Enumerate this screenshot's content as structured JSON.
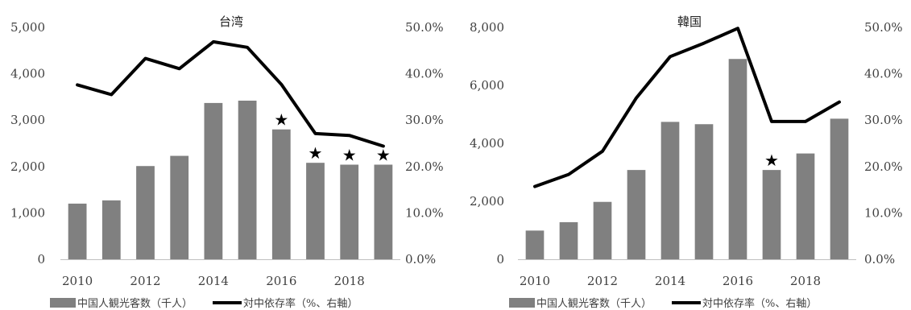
{
  "colors": {
    "bar": "#808080",
    "line": "#000000",
    "text": "#404040",
    "axis": "#bfbfbf",
    "star": "#000000"
  },
  "legend": {
    "bar_label": "中国人観光客数（千人）",
    "line_label": "対中依存率（%、右軸）"
  },
  "chart_data": [
    {
      "type": "bar",
      "title": "台湾",
      "categories": [
        2010,
        2011,
        2012,
        2013,
        2014,
        2015,
        2016,
        2017,
        2018,
        2019
      ],
      "x_tick_labels": [
        "2010",
        "2012",
        "2014",
        "2016",
        "2018"
      ],
      "series": [
        {
          "name": "中国人観光客数（千人）",
          "type": "bar",
          "axis": "left",
          "values": [
            1200,
            1270,
            2010,
            2230,
            3370,
            3420,
            2800,
            2080,
            2040,
            2040
          ]
        },
        {
          "name": "対中依存率（%、右軸）",
          "type": "line",
          "axis": "right",
          "values": [
            37.6,
            35.5,
            43.3,
            41.1,
            46.9,
            45.7,
            37.7,
            27.1,
            26.7,
            24.4
          ]
        }
      ],
      "starred_categories": [
        2016,
        2017,
        2018,
        2019
      ],
      "y_left": {
        "range": [
          0,
          5000
        ],
        "ticks": [
          0,
          1000,
          2000,
          3000,
          4000,
          5000
        ],
        "tick_labels": [
          "0",
          "1,000",
          "2,000",
          "3,000",
          "4,000",
          "5,000"
        ]
      },
      "y_right": {
        "range": [
          0,
          50
        ],
        "ticks": [
          0,
          10,
          20,
          30,
          40,
          50
        ],
        "tick_labels": [
          "0.0%",
          "10.0%",
          "20.0%",
          "30.0%",
          "40.0%",
          "50.0%"
        ]
      },
      "grid": false
    },
    {
      "type": "bar",
      "title": "韓国",
      "categories": [
        2010,
        2011,
        2012,
        2013,
        2014,
        2015,
        2016,
        2017,
        2018,
        2019
      ],
      "x_tick_labels": [
        "2010",
        "2012",
        "2014",
        "2016",
        "2018"
      ],
      "series": [
        {
          "name": "中国人観光客数（千人）",
          "type": "bar",
          "axis": "left",
          "values": [
            990,
            1280,
            1980,
            3080,
            4740,
            4660,
            6910,
            3080,
            3650,
            4850
          ]
        },
        {
          "name": "対中依存率（%、右軸）",
          "type": "line",
          "axis": "right",
          "values": [
            15.7,
            18.3,
            23.3,
            34.8,
            43.7,
            46.6,
            49.8,
            29.7,
            29.7,
            33.9
          ]
        }
      ],
      "starred_categories": [
        2017
      ],
      "y_left": {
        "range": [
          0,
          8000
        ],
        "ticks": [
          0,
          2000,
          4000,
          6000,
          8000
        ],
        "tick_labels": [
          "0",
          "2,000",
          "4,000",
          "6,000",
          "8,000"
        ]
      },
      "y_right": {
        "range": [
          0,
          50
        ],
        "ticks": [
          0,
          10,
          20,
          30,
          40,
          50
        ],
        "tick_labels": [
          "0.0%",
          "10.0%",
          "20.0%",
          "30.0%",
          "40.0%",
          "50.0%"
        ]
      },
      "grid": false
    }
  ]
}
